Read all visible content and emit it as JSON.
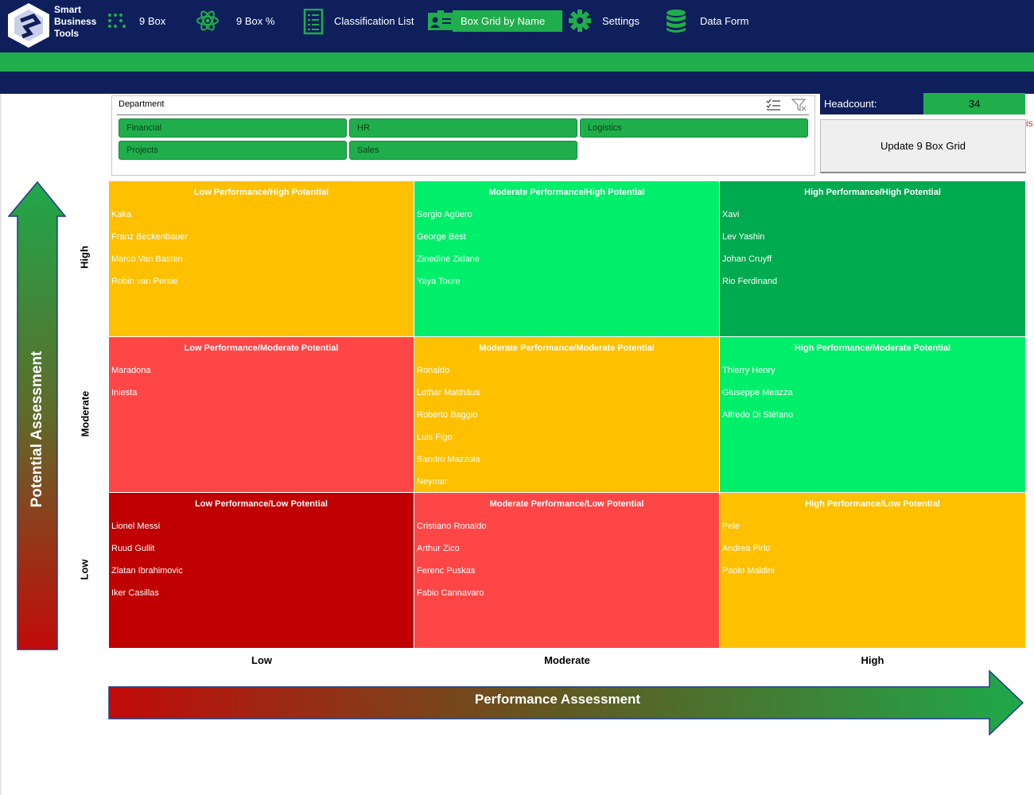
{
  "app": {
    "logo_text": [
      "Smart",
      "Business",
      "Tools"
    ]
  },
  "nav": {
    "items": [
      {
        "label": "9 Box",
        "icon": "dots-grid-icon"
      },
      {
        "label": "9 Box %",
        "icon": "atom-icon"
      },
      {
        "label": "Classification List",
        "icon": "list-icon"
      },
      {
        "label": "Box Grid by Name",
        "icon": "id-card-icon",
        "active": true
      },
      {
        "label": "Settings",
        "icon": "gear-icon"
      },
      {
        "label": "Data Form",
        "icon": "database-icon"
      }
    ]
  },
  "slicer": {
    "title": "Department",
    "buttons": [
      "Financial",
      "HR",
      "Logistics",
      "Projects",
      "Sales"
    ]
  },
  "headcount": {
    "label": "Headcount:",
    "value": "34"
  },
  "update_button": "Update 9 Box Grid",
  "red_fragment": "is",
  "grid": {
    "cells": [
      {
        "title": "Low Performance/High Potential",
        "color": "#ffc000",
        "names": [
          "Kaka",
          "Franz Beckenbauer",
          "Marco Van Basten",
          "Robin van Persie"
        ]
      },
      {
        "title": "Moderate Performance/High Potential",
        "color": "#00ef6a",
        "names": [
          "Sergio Agüero",
          "George Best",
          "Zinedine Zidane",
          "Yaya Toure"
        ]
      },
      {
        "title": "High Performance/High Potential",
        "color": "#00aa4f",
        "names": [
          "Xavi",
          "Lev Yashin",
          "Johan Cruyff",
          "Rio Ferdinand"
        ]
      },
      {
        "title": "Low Performance/Moderate Potential",
        "color": "#ff4646",
        "names": [
          "Maradona",
          "Iniesta"
        ]
      },
      {
        "title": "Moderate Performance/Moderate Potential",
        "color": "#ffc000",
        "names": [
          "Ronaldo",
          "Lothar Matthäus",
          "Roberto Baggio",
          "Luis Figo",
          "Sandro Mazzola",
          "Neymar"
        ]
      },
      {
        "title": "High Performance/Moderate Potential",
        "color": "#00ef6a",
        "names": [
          "Thierry Henry",
          "Giuseppe Meazza",
          "Alfredo Di Stéfano"
        ]
      },
      {
        "title": "Low Performance/Low Potential",
        "color": "#c00000",
        "names": [
          "Lionel Messi",
          "Ruud Gullit",
          "Zlatan Ibrahimovic",
          "Iker Casillas"
        ]
      },
      {
        "title": "Moderate Performance/Low Potential",
        "color": "#ff4646",
        "names": [
          "Cristiano Ronaldo",
          "Arthur Zico",
          "Ferenc Puskas",
          "Fabio Cannavaro"
        ]
      },
      {
        "title": "High Performance/Low Potential",
        "color": "#ffc000",
        "names": [
          "Pele",
          "Andrea Pirlo",
          "Paolo Maldini"
        ]
      }
    ],
    "row_labels": [
      "High",
      "Moderate",
      "Low"
    ],
    "col_labels": [
      "Low",
      "Moderate",
      "High"
    ]
  },
  "axes": {
    "y_title": "Potential Assessment",
    "x_title": "Performance Assessment"
  }
}
